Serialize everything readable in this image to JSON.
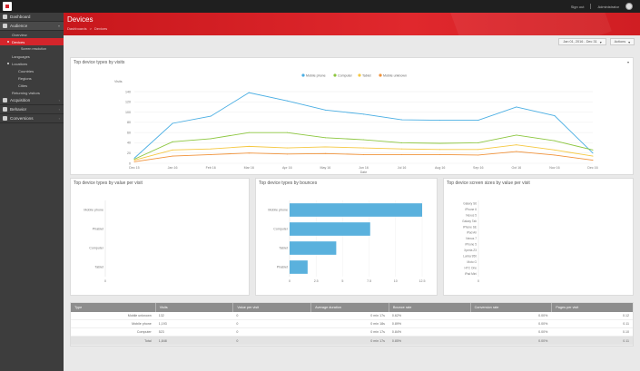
{
  "topbar": {
    "link1": "Sign out",
    "user_label": "Administrator"
  },
  "sidebar": {
    "dashboard": "Dashboard",
    "audience": "Audience",
    "overview": "Overview",
    "devices": "Devices",
    "screen_res": "Screen resolution",
    "languages": "Languages",
    "locations": "Locations",
    "countries": "Countries",
    "regions": "Regions",
    "cities": "Cities",
    "returning": "Returning visitors",
    "acquisition": "Acquisition",
    "behavior": "Behavior",
    "conversions": "Conversions"
  },
  "header": {
    "title": "Devices",
    "crumb1": "Dashboards",
    "crumb_sep": ">",
    "crumb2": "Devices"
  },
  "toolbar": {
    "date_range": "Jan 01, 2016 - Dec 31",
    "export": "Actions"
  },
  "line_card": {
    "title": "Top device types by visits",
    "ylabel": "Visits",
    "xlabel": "Date"
  },
  "bar_card_left": {
    "title": "Top device types by value per visit"
  },
  "bar_card_mid": {
    "title": "Top device types by bounces"
  },
  "bar_card_right": {
    "title": "Top device screen sizes by value per visit"
  },
  "chart_data": [
    {
      "type": "line",
      "title": "Top device types by visits",
      "xlabel": "Date",
      "ylabel": "Visits",
      "x": [
        "Dec 15",
        "Jan 16",
        "Feb 16",
        "Mar 16",
        "Apr 16",
        "May 16",
        "Jun 16",
        "Jul 16",
        "Aug 16",
        "Sep 16",
        "Oct 16",
        "Nov 16",
        "Dec 16"
      ],
      "ylim": [
        0,
        140
      ],
      "yticks": [
        0,
        20,
        40,
        60,
        80,
        100,
        120,
        140
      ],
      "legend": "top",
      "series": [
        {
          "name": "Mobile phone",
          "color": "#4aaee3",
          "values": [
            10,
            78,
            92,
            138,
            122,
            104,
            96,
            85,
            84,
            84,
            110,
            93,
            20
          ]
        },
        {
          "name": "Computer",
          "color": "#8cc63f",
          "values": [
            8,
            42,
            48,
            60,
            60,
            50,
            46,
            40,
            39,
            40,
            55,
            44,
            26
          ]
        },
        {
          "name": "Tablet",
          "color": "#f5c842",
          "values": [
            6,
            26,
            28,
            33,
            30,
            32,
            30,
            28,
            27,
            27,
            36,
            26,
            14
          ]
        },
        {
          "name": "Mobile unknown",
          "color": "#f0923a",
          "values": [
            3,
            14,
            17,
            20,
            18,
            19,
            17,
            17,
            17,
            16,
            23,
            16,
            6
          ]
        }
      ]
    },
    {
      "type": "bar",
      "orientation": "horizontal",
      "title": "Top device types by value per visit",
      "categories": [
        "Mobile phone",
        "Phablet",
        "Computer",
        "Tablet"
      ],
      "values": [
        0,
        0,
        0,
        0
      ],
      "xlim": [
        0,
        1
      ],
      "xticks": [
        0
      ]
    },
    {
      "type": "bar",
      "orientation": "horizontal",
      "title": "Top device types by bounces",
      "categories": [
        "Mobile phone",
        "Computer",
        "Tablet",
        "Phablet"
      ],
      "values": [
        12.5,
        7.6,
        4.4,
        1.7
      ],
      "xlim": [
        0,
        12.5
      ],
      "xticks": [
        0,
        2.5,
        5,
        7.5,
        10,
        12.5
      ]
    },
    {
      "type": "bar",
      "orientation": "horizontal",
      "title": "Top device screen sizes by value per visit",
      "categories": [
        "Galaxy S6",
        "iPhone 6",
        "Nexus 5",
        "Galaxy Tab",
        "iPhone SE",
        "iPad Air",
        "Nexus 7",
        "iPhone 5",
        "Xperia Z3",
        "Lumia 950",
        "Moto G",
        "HTC One",
        "iPad Mini"
      ],
      "values": [
        0,
        0,
        0,
        0,
        0,
        0,
        0,
        0,
        0,
        0,
        0,
        0,
        0
      ],
      "xlim": [
        0,
        1
      ],
      "xticks": [
        0
      ]
    }
  ],
  "table": {
    "headers": [
      "Type",
      "Visits",
      "Value per visit",
      "Average duration",
      "Bounce rate",
      "Conversion rate",
      "Pages per visit"
    ],
    "rows": [
      [
        "Mobile unknown",
        "132",
        "0",
        "0 min 17s",
        "0.62%",
        "0.00%",
        "0.12"
      ],
      [
        "Mobile phone",
        "1,193",
        "0",
        "0 min 18s",
        "0.89%",
        "0.00%",
        "0.11"
      ],
      [
        "Computer",
        "523",
        "0",
        "0 min 17s",
        "0.84%",
        "0.00%",
        "0.10"
      ]
    ],
    "total": [
      "Total",
      "1,848",
      "0",
      "0 min 17s",
      "0.85%",
      "0.00%",
      "0.11"
    ]
  }
}
